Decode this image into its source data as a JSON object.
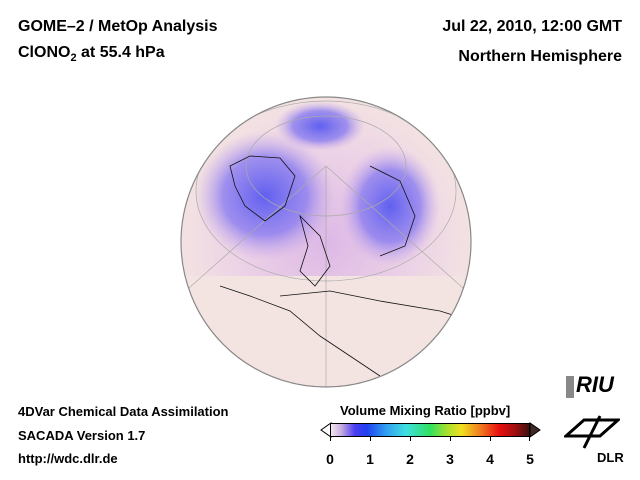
{
  "header": {
    "title_line1": "GOME–2 / MetOp Analysis",
    "title_line2_prefix": "ClONO",
    "title_line2_sub": "2",
    "title_line2_suffix": " at 55.4 hPa",
    "date": "Jul 22, 2010, 12:00 GMT",
    "region": "Northern Hemisphere"
  },
  "footer": {
    "line1": "4DVar Chemical Data Assimilation",
    "line2": "SACADA Version 1.7",
    "line3": "http://wdc.dlr.de"
  },
  "colorbar": {
    "title": "Volume Mixing Ratio [ppbv]",
    "ticks": [
      "0",
      "1",
      "2",
      "3",
      "4",
      "5"
    ],
    "range": [
      0,
      5
    ]
  },
  "logos": {
    "riu": "RIU",
    "dlr": "DLR"
  }
}
